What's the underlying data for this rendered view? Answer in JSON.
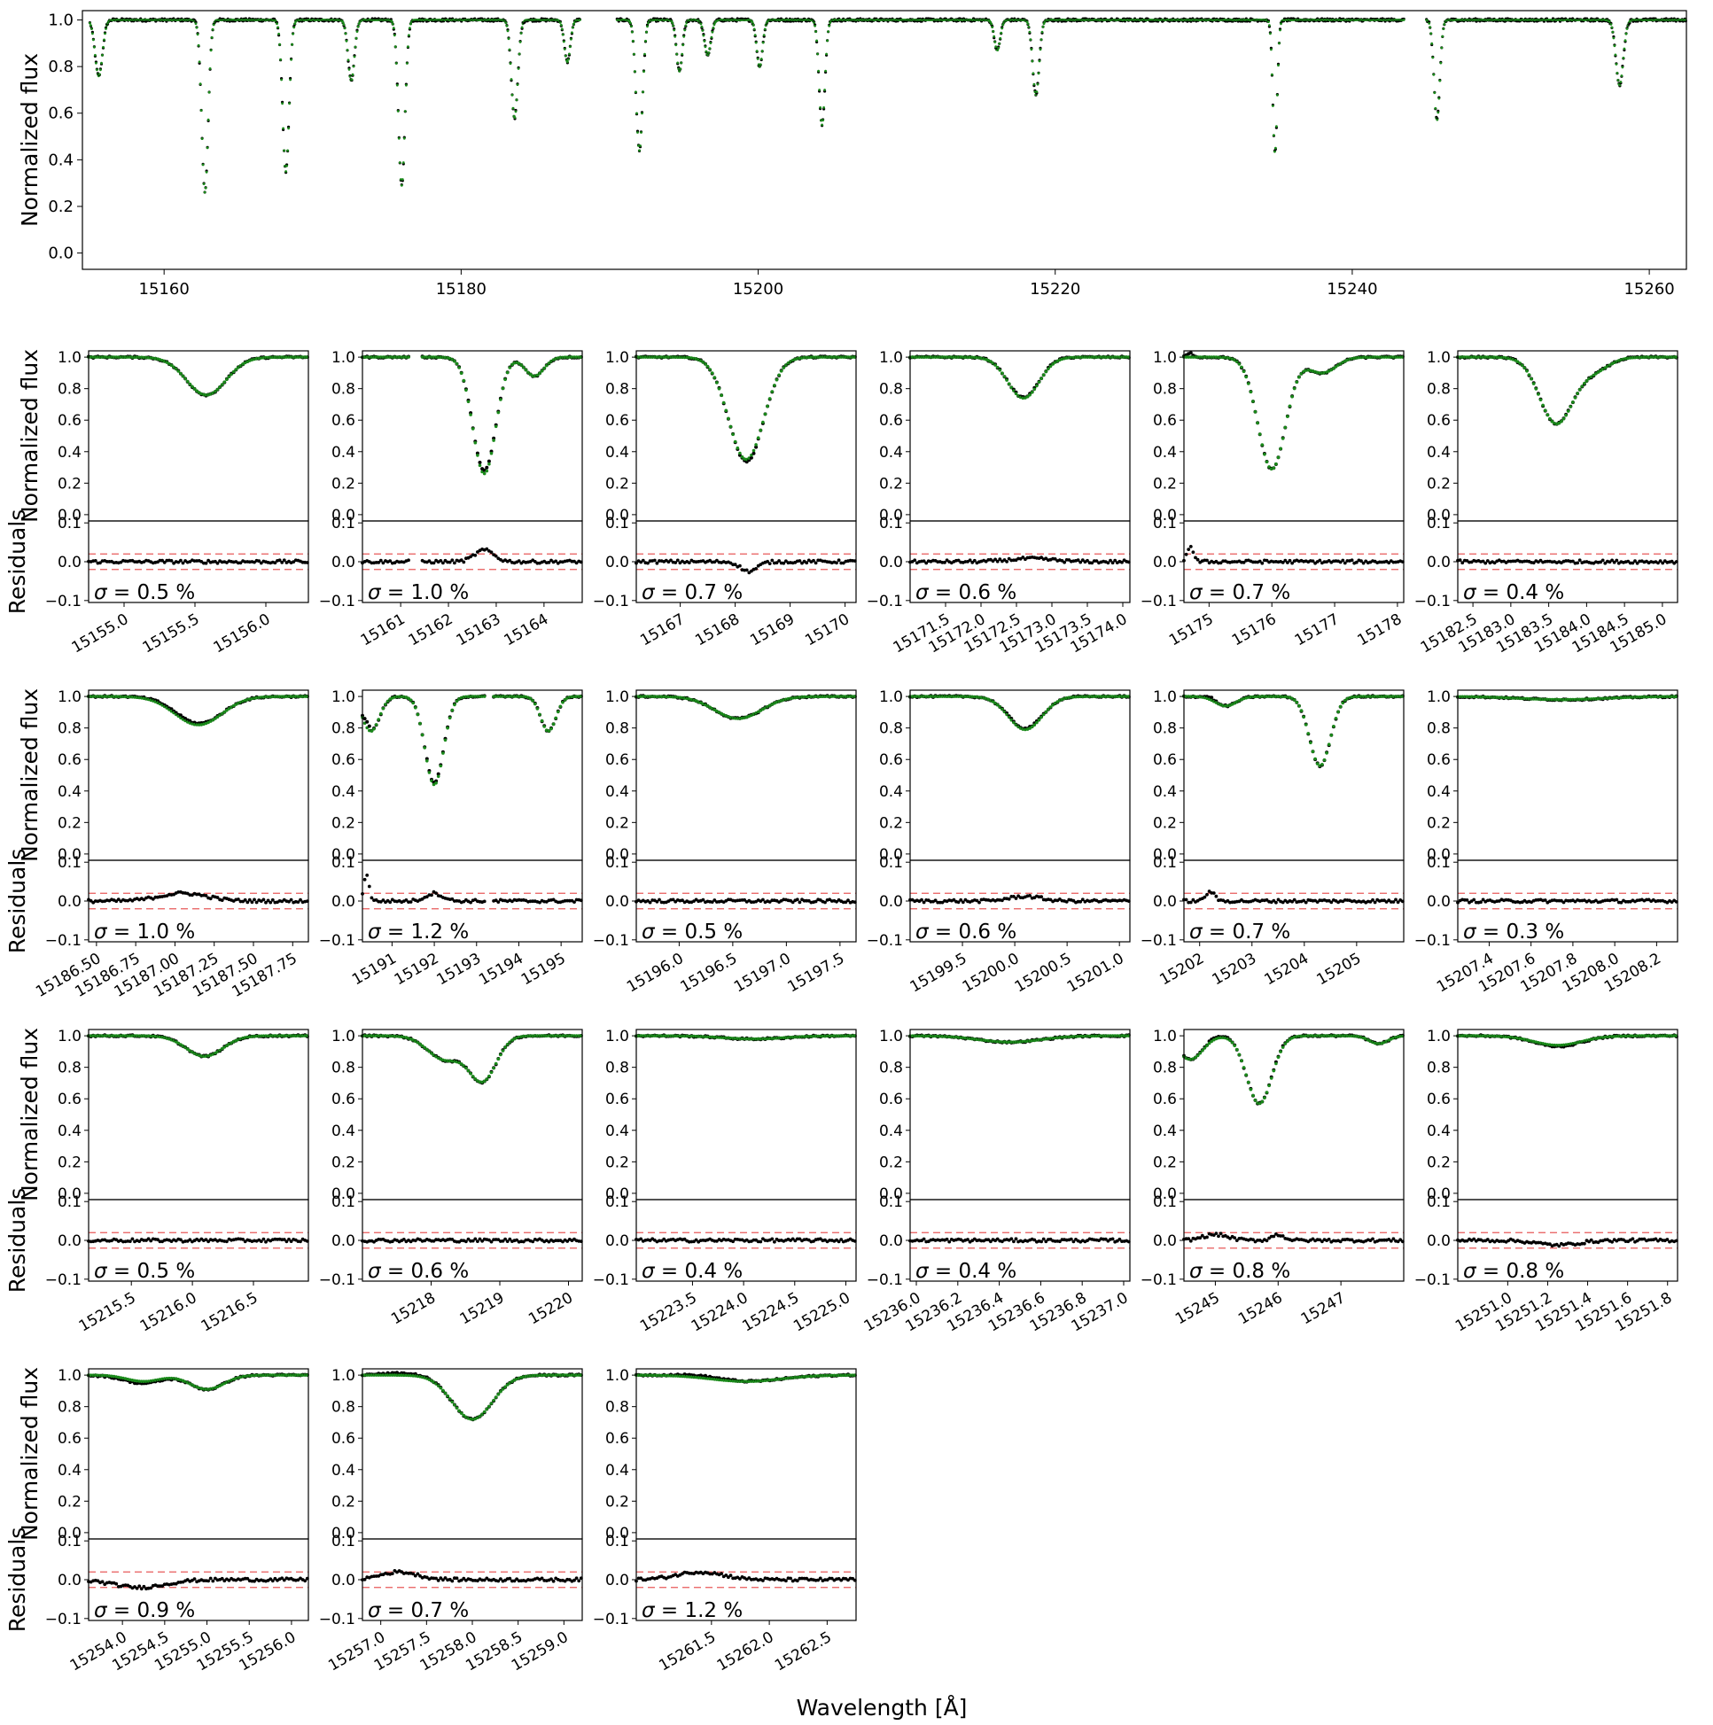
{
  "figure": {
    "xlabel": "Wavelength [Å]",
    "flux_label": "Normalized flux",
    "resid_label": "Residuals",
    "colors": {
      "observed": "#000000",
      "model": "#1a8a1a",
      "band": "#e85a5a",
      "axis": "#000000"
    }
  },
  "chart_data": [
    {
      "type": "scatter",
      "id": "overview",
      "ylabel": "Normalized flux",
      "xlim": [
        15154.5,
        15262.5
      ],
      "ylim": [
        -0.07,
        1.04
      ],
      "xticks": [
        15160,
        15180,
        15200,
        15220,
        15240,
        15260
      ],
      "xtick_labels": [
        "15160",
        "15180",
        "15200",
        "15220",
        "15240",
        "15260"
      ],
      "yticks": [
        0.0,
        0.2,
        0.4,
        0.6,
        0.8,
        1.0
      ],
      "ytick_labels": [
        "0.0",
        "0.2",
        "0.4",
        "0.6",
        "0.8",
        "1.0"
      ],
      "segments": [
        [
          15155.0,
          15188.0
        ],
        [
          15190.5,
          15243.5
        ],
        [
          15245.0,
          15262.5
        ]
      ],
      "lines": [
        {
          "center": 15155.6,
          "depth": 0.24,
          "width": 0.25
        },
        {
          "center": 15162.75,
          "depth": 0.74,
          "width": 0.22
        },
        {
          "center": 15168.2,
          "depth": 0.65,
          "width": 0.22
        },
        {
          "center": 15172.6,
          "depth": 0.26,
          "width": 0.22
        },
        {
          "center": 15176.0,
          "depth": 0.71,
          "width": 0.22
        },
        {
          "center": 15183.6,
          "depth": 0.42,
          "width": 0.22
        },
        {
          "center": 15187.15,
          "depth": 0.18,
          "width": 0.2
        },
        {
          "center": 15192.0,
          "depth": 0.56,
          "width": 0.22
        },
        {
          "center": 15194.7,
          "depth": 0.22,
          "width": 0.2
        },
        {
          "center": 15196.6,
          "depth": 0.15,
          "width": 0.22
        },
        {
          "center": 15200.1,
          "depth": 0.2,
          "width": 0.2
        },
        {
          "center": 15204.3,
          "depth": 0.45,
          "width": 0.2
        },
        {
          "center": 15216.1,
          "depth": 0.13,
          "width": 0.2
        },
        {
          "center": 15218.7,
          "depth": 0.32,
          "width": 0.22
        },
        {
          "center": 15234.8,
          "depth": 0.57,
          "width": 0.15
        },
        {
          "center": 15245.7,
          "depth": 0.43,
          "width": 0.2
        },
        {
          "center": 15258.0,
          "depth": 0.28,
          "width": 0.25
        }
      ]
    },
    {
      "type": "scatter",
      "id": "p1",
      "sigma": "0.5",
      "xlim": [
        15154.75,
        15156.3
      ],
      "xticks": [
        15155.0,
        15155.5,
        15156.0
      ],
      "xtick_labels": [
        "15155.0",
        "15155.5",
        "15156.0"
      ],
      "lines": [
        {
          "center": 15155.58,
          "depth": 0.24,
          "width": 0.14
        }
      ],
      "resid": {
        "bumps": []
      }
    },
    {
      "type": "scatter",
      "id": "p2",
      "sigma": "1.0",
      "xlim": [
        15160.2,
        15164.8
      ],
      "xticks": [
        15161,
        15162,
        15163,
        15164
      ],
      "xtick_labels": [
        "15161",
        "15162",
        "15163",
        "15164"
      ],
      "gaps": [
        [
          15161.2,
          15161.45
        ]
      ],
      "lines": [
        {
          "center": 15162.75,
          "depth": 0.74,
          "width": 0.24
        },
        {
          "center": 15163.8,
          "depth": 0.12,
          "width": 0.2
        }
      ],
      "resid": {
        "bumps": [
          {
            "center": 15162.75,
            "amp": 0.03,
            "width": 0.2
          }
        ]
      }
    },
    {
      "type": "scatter",
      "id": "p3",
      "sigma": "0.7",
      "xlim": [
        15166.2,
        15170.2
      ],
      "xticks": [
        15167,
        15168,
        15169,
        15170
      ],
      "xtick_labels": [
        "15167",
        "15168",
        "15169",
        "15170"
      ],
      "lines": [
        {
          "center": 15168.2,
          "depth": 0.65,
          "width": 0.32
        }
      ],
      "resid": {
        "bumps": [
          {
            "center": 15168.25,
            "amp": -0.025,
            "width": 0.15
          }
        ]
      }
    },
    {
      "type": "scatter",
      "id": "p4",
      "sigma": "0.6",
      "xlim": [
        15171.0,
        15174.1
      ],
      "xticks": [
        15171.5,
        15172.0,
        15172.5,
        15173.0,
        15173.5,
        15174.0
      ],
      "xtick_labels": [
        "15171.5",
        "15172.0",
        "15172.5",
        "15173.0",
        "15173.5",
        "15174.0"
      ],
      "lines": [
        {
          "center": 15172.6,
          "depth": 0.26,
          "width": 0.22
        }
      ],
      "resid": {
        "bumps": [
          {
            "center": 15172.7,
            "amp": 0.008,
            "width": 0.3
          }
        ]
      }
    },
    {
      "type": "scatter",
      "id": "p5",
      "sigma": "0.7",
      "xlim": [
        15174.6,
        15178.1
      ],
      "xticks": [
        15175,
        15176,
        15177,
        15178
      ],
      "xtick_labels": [
        "15175",
        "15176",
        "15177",
        "15178"
      ],
      "lines": [
        {
          "center": 15176.0,
          "depth": 0.71,
          "width": 0.22
        },
        {
          "center": 15176.8,
          "depth": 0.1,
          "width": 0.22
        }
      ],
      "resid": {
        "bumps": [
          {
            "center": 15174.7,
            "amp": 0.04,
            "width": 0.05
          }
        ]
      }
    },
    {
      "type": "scatter",
      "id": "p6",
      "sigma": "0.4",
      "xlim": [
        15182.3,
        15185.2
      ],
      "xticks": [
        15182.5,
        15183.0,
        15183.5,
        15184.0,
        15184.5,
        15185.0
      ],
      "xtick_labels": [
        "15182.5",
        "15183.0",
        "15183.5",
        "15184.0",
        "15184.5",
        "15185.0"
      ],
      "lines": [
        {
          "center": 15183.6,
          "depth": 0.42,
          "width": 0.22
        },
        {
          "center": 15184.1,
          "depth": 0.08,
          "width": 0.2
        }
      ],
      "resid": {
        "bumps": []
      }
    },
    {
      "type": "scatter",
      "id": "p7",
      "sigma": "1.0",
      "xlim": [
        15186.45,
        15187.85
      ],
      "xticks": [
        15186.5,
        15186.75,
        15187.0,
        15187.25,
        15187.5,
        15187.75
      ],
      "xtick_labels": [
        "15186.50",
        "15186.75",
        "15187.00",
        "15187.25",
        "15187.50",
        "15187.75"
      ],
      "lines": [
        {
          "center": 15187.15,
          "depth": 0.18,
          "width": 0.15
        }
      ],
      "resid": {
        "bumps": [
          {
            "center": 15187.05,
            "amp": 0.02,
            "width": 0.15
          }
        ]
      }
    },
    {
      "type": "scatter",
      "id": "p8",
      "sigma": "1.2",
      "xlim": [
        15190.3,
        15195.5
      ],
      "xticks": [
        15191,
        15192,
        15193,
        15194,
        15195
      ],
      "xtick_labels": [
        "15191",
        "15192",
        "15193",
        "15194",
        "15195"
      ],
      "gaps": [
        [
          15193.2,
          15193.4
        ]
      ],
      "lines": [
        {
          "center": 15190.5,
          "depth": 0.22,
          "width": 0.2
        },
        {
          "center": 15192.0,
          "depth": 0.56,
          "width": 0.22
        },
        {
          "center": 15194.7,
          "depth": 0.22,
          "width": 0.18
        }
      ],
      "resid": {
        "bumps": [
          {
            "center": 15190.4,
            "amp": 0.07,
            "width": 0.06
          },
          {
            "center": 15192.0,
            "amp": 0.02,
            "width": 0.2
          }
        ]
      }
    },
    {
      "type": "scatter",
      "id": "p9",
      "sigma": "0.5",
      "xlim": [
        15195.6,
        15197.65
      ],
      "xticks": [
        15196.0,
        15196.5,
        15197.0,
        15197.5
      ],
      "xtick_labels": [
        "15196.0",
        "15196.5",
        "15197.0",
        "15197.5"
      ],
      "lines": [
        {
          "center": 15196.55,
          "depth": 0.14,
          "width": 0.22
        }
      ],
      "resid": {
        "bumps": []
      }
    },
    {
      "type": "scatter",
      "id": "p10",
      "sigma": "0.6",
      "xlim": [
        15199.0,
        15201.1
      ],
      "xticks": [
        15199.5,
        15200.0,
        15200.5,
        15201.0
      ],
      "xtick_labels": [
        "15199.5",
        "15200.0",
        "15200.5",
        "15201.0"
      ],
      "lines": [
        {
          "center": 15200.1,
          "depth": 0.21,
          "width": 0.16
        }
      ],
      "resid": {
        "bumps": [
          {
            "center": 15200.1,
            "amp": 0.012,
            "width": 0.15
          }
        ]
      }
    },
    {
      "type": "scatter",
      "id": "p11",
      "sigma": "0.7",
      "xlim": [
        15201.7,
        15205.9
      ],
      "xticks": [
        15202,
        15203,
        15204,
        15205
      ],
      "xtick_labels": [
        "15202",
        "15203",
        "15204",
        "15205"
      ],
      "lines": [
        {
          "center": 15202.5,
          "depth": 0.06,
          "width": 0.2
        },
        {
          "center": 15204.3,
          "depth": 0.44,
          "width": 0.2
        }
      ],
      "resid": {
        "bumps": [
          {
            "center": 15202.2,
            "amp": 0.025,
            "width": 0.08
          }
        ]
      }
    },
    {
      "type": "scatter",
      "id": "p12",
      "sigma": "0.3",
      "xlim": [
        15207.25,
        15208.3
      ],
      "xticks": [
        15207.4,
        15207.6,
        15207.8,
        15208.0,
        15208.2
      ],
      "xtick_labels": [
        "15207.4",
        "15207.6",
        "15207.8",
        "15208.0",
        "15208.2"
      ],
      "lines": [
        {
          "center": 15207.75,
          "depth": 0.02,
          "width": 0.2
        }
      ],
      "resid": {
        "bumps": []
      }
    },
    {
      "type": "scatter",
      "id": "p13",
      "sigma": "0.5",
      "xlim": [
        15215.15,
        15216.95
      ],
      "xticks": [
        15215.5,
        15216.0,
        15216.5
      ],
      "xtick_labels": [
        "15215.5",
        "15216.0",
        "15216.5"
      ],
      "lines": [
        {
          "center": 15216.1,
          "depth": 0.13,
          "width": 0.15
        }
      ],
      "resid": {
        "bumps": []
      }
    },
    {
      "type": "scatter",
      "id": "p14",
      "sigma": "0.6",
      "xlim": [
        15217.0,
        15220.2
      ],
      "xticks": [
        15218,
        15219,
        15220
      ],
      "xtick_labels": [
        "15218",
        "15219",
        "15220"
      ],
      "lines": [
        {
          "center": 15218.2,
          "depth": 0.15,
          "width": 0.25
        },
        {
          "center": 15218.75,
          "depth": 0.28,
          "width": 0.2
        }
      ],
      "resid": {
        "bumps": []
      }
    },
    {
      "type": "scatter",
      "id": "p15",
      "sigma": "0.4",
      "xlim": [
        15222.95,
        15225.1
      ],
      "xticks": [
        15223.5,
        15224.0,
        15224.5,
        15225.0
      ],
      "xtick_labels": [
        "15223.5",
        "15224.0",
        "15224.5",
        "15225.0"
      ],
      "lines": [
        {
          "center": 15224.1,
          "depth": 0.02,
          "width": 0.3
        }
      ],
      "resid": {
        "bumps": []
      }
    },
    {
      "type": "scatter",
      "id": "p16",
      "sigma": "0.4",
      "xlim": [
        15235.97,
        15237.03
      ],
      "xticks": [
        15236.0,
        15236.2,
        15236.4,
        15236.6,
        15236.8,
        15237.0
      ],
      "xtick_labels": [
        "15236.0",
        "15236.2",
        "15236.4",
        "15236.6",
        "15236.8",
        "15237.0"
      ],
      "lines": [
        {
          "center": 15236.45,
          "depth": 0.04,
          "width": 0.15
        }
      ],
      "resid": {
        "bumps": []
      }
    },
    {
      "type": "scatter",
      "id": "p17",
      "sigma": "0.8",
      "xlim": [
        15244.5,
        15248.0
      ],
      "xticks": [
        15245,
        15246,
        15247
      ],
      "xtick_labels": [
        "15245",
        "15246",
        "15247"
      ],
      "lines": [
        {
          "center": 15244.6,
          "depth": 0.15,
          "width": 0.2
        },
        {
          "center": 15245.7,
          "depth": 0.43,
          "width": 0.2
        },
        {
          "center": 15247.6,
          "depth": 0.05,
          "width": 0.15
        }
      ],
      "resid": {
        "bumps": [
          {
            "center": 15245.0,
            "amp": 0.015,
            "width": 0.2
          },
          {
            "center": 15246.0,
            "amp": 0.015,
            "width": 0.1
          }
        ]
      }
    },
    {
      "type": "scatter",
      "id": "p18",
      "sigma": "0.8",
      "xlim": [
        15250.75,
        15251.85
      ],
      "xticks": [
        15251.0,
        15251.2,
        15251.4,
        15251.6,
        15251.8
      ],
      "xtick_labels": [
        "15251.0",
        "15251.2",
        "15251.4",
        "15251.6",
        "15251.8"
      ],
      "lines": [
        {
          "center": 15251.25,
          "depth": 0.06,
          "width": 0.12
        }
      ],
      "resid": {
        "bumps": [
          {
            "center": 15251.25,
            "amp": -0.012,
            "width": 0.1
          }
        ]
      }
    },
    {
      "type": "scatter",
      "id": "p19",
      "sigma": "0.9",
      "xlim": [
        15253.6,
        15256.2
      ],
      "xticks": [
        15254.0,
        15254.5,
        15255.0,
        15255.5,
        15256.0
      ],
      "xtick_labels": [
        "15254.0",
        "15254.5",
        "15255.0",
        "15255.5",
        "15256.0"
      ],
      "lines": [
        {
          "center": 15254.25,
          "depth": 0.04,
          "width": 0.2
        },
        {
          "center": 15255.0,
          "depth": 0.09,
          "width": 0.2
        }
      ],
      "resid": {
        "bumps": [
          {
            "center": 15254.2,
            "amp": -0.02,
            "width": 0.3
          }
        ]
      }
    },
    {
      "type": "scatter",
      "id": "p20",
      "sigma": "0.7",
      "xlim": [
        15256.8,
        15259.2
      ],
      "xticks": [
        15257.0,
        15257.5,
        15258.0,
        15258.5,
        15259.0
      ],
      "xtick_labels": [
        "15257.0",
        "15257.5",
        "15258.0",
        "15258.5",
        "15259.0"
      ],
      "lines": [
        {
          "center": 15258.0,
          "depth": 0.28,
          "width": 0.22
        }
      ],
      "resid": {
        "bumps": [
          {
            "center": 15257.2,
            "amp": 0.02,
            "width": 0.2
          }
        ]
      }
    },
    {
      "type": "scatter",
      "id": "p21",
      "sigma": "1.2",
      "xlim": [
        15260.85,
        15262.75
      ],
      "xticks": [
        15261.5,
        15262.0,
        15262.5
      ],
      "xtick_labels": [
        "15261.5",
        "15262.0",
        "15262.5"
      ],
      "lines": [
        {
          "center": 15261.8,
          "depth": 0.04,
          "width": 0.3
        }
      ],
      "resid": {
        "bumps": [
          {
            "center": 15261.4,
            "amp": 0.02,
            "width": 0.2
          }
        ]
      }
    }
  ]
}
